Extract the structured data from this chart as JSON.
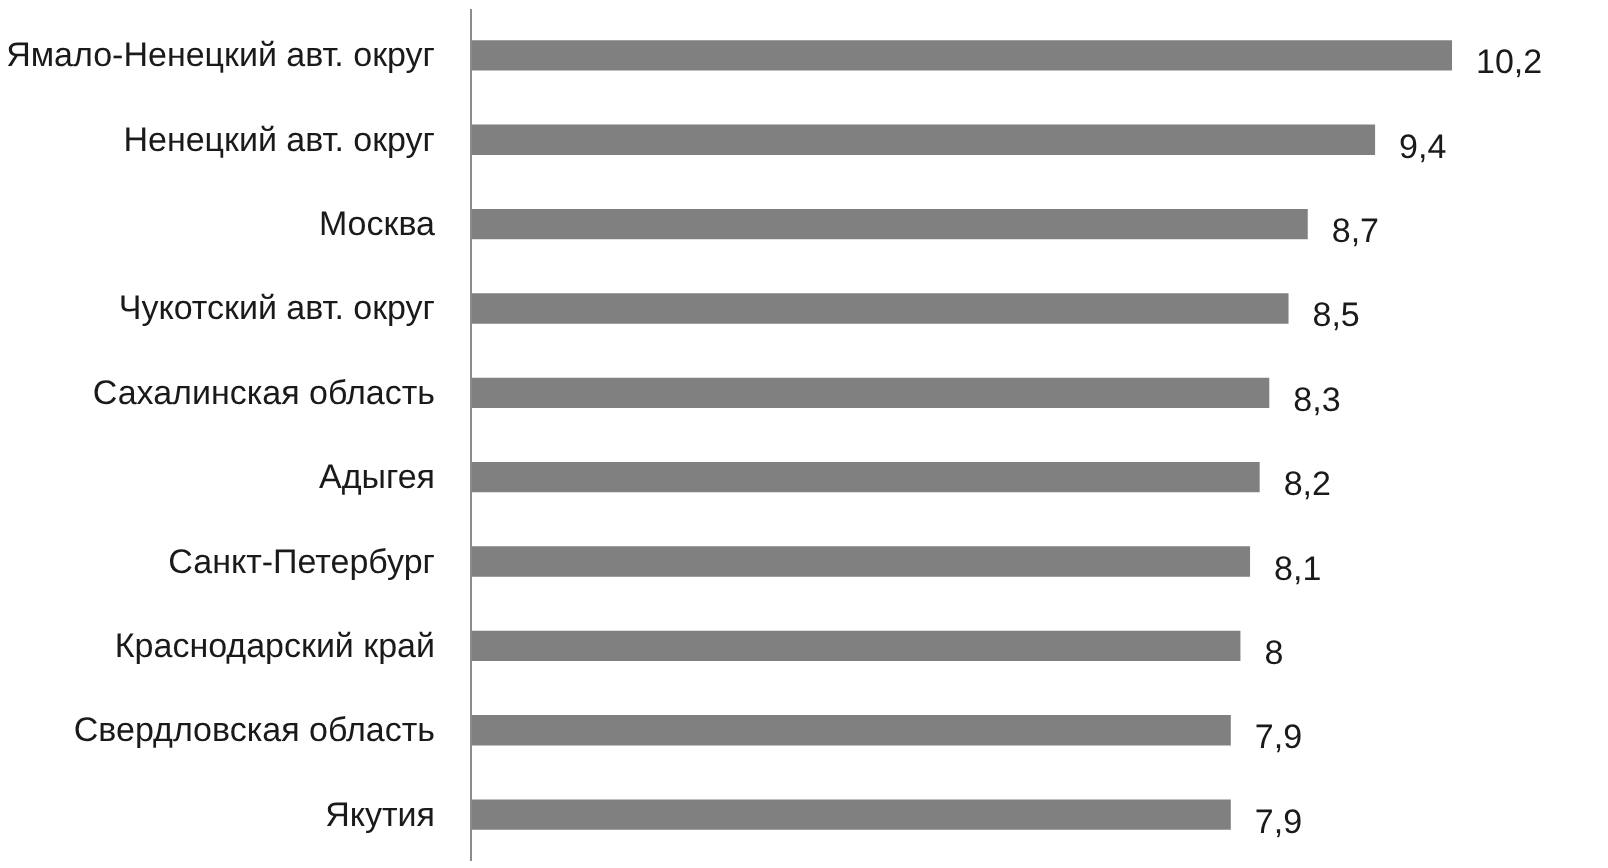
{
  "chart_data": {
    "type": "bar",
    "orientation": "horizontal",
    "categories": [
      "Ямало-Ненецкий авт. округ",
      "Ненецкий авт. округ",
      "Москва",
      "Чукотский авт. округ",
      "Сахалинская область",
      "Адыгея",
      "Санкт-Петербург",
      "Краснодарский край",
      "Свердловская область",
      "Якутия"
    ],
    "values": [
      10.2,
      9.4,
      8.7,
      8.5,
      8.3,
      8.2,
      8.1,
      8,
      7.9,
      7.9
    ],
    "value_labels": [
      "10,2",
      "9,4",
      "8,7",
      "8,5",
      "8,3",
      "8,2",
      "8,1",
      "8",
      "7,9",
      "7,9"
    ],
    "color": "#808080"
  }
}
